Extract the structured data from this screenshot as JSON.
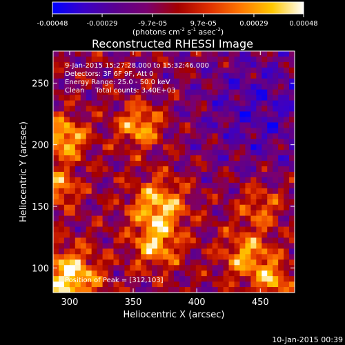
{
  "chart_data": {
    "type": "heatmap",
    "title": "Reconstructed RHESSI Image",
    "xlabel": "Heliocentric X (arcsec)",
    "ylabel": "Heliocentric Y (arcsec)",
    "xlim": [
      287,
      477
    ],
    "ylim": [
      80,
      276
    ],
    "x_ticks": [
      300,
      350,
      400,
      450
    ],
    "y_ticks": [
      100,
      150,
      200,
      250
    ],
    "colorbar": {
      "ticks": [
        "-0.00048",
        "-0.00029",
        "-9.7e-05",
        "9.7e-05",
        "0.00029",
        "0.00048"
      ],
      "unit_prefix": "(photons cm",
      "unit_exp1": "-2",
      "unit_mid": " s",
      "unit_exp2": "-1",
      "unit_mid2": " asec",
      "unit_exp3": "-2",
      "unit_suffix": ")",
      "range": [
        -0.00048,
        0.00048
      ],
      "colors": [
        "#0000ff",
        "#3a00c8",
        "#5a0090",
        "#7a0070",
        "#a40000",
        "#e03000",
        "#ff7800",
        "#ffc800",
        "#ffffff"
      ]
    },
    "annotations": [
      "9-Jan-2015 15:27:28.000 to 15:32:46.000",
      "Detectors: 3F 6F 9F, Att 0",
      "Energy Range: 25.0 - 50.0 keV",
      "Clean     Total counts: 3.40E+03"
    ],
    "peak_label": "Position of Peak = [312,103]",
    "peak": [
      312,
      103
    ],
    "sources": [
      {
        "x": 300,
        "y": 92,
        "amp": 1.0,
        "sigma": 16
      },
      {
        "x": 296,
        "y": 205,
        "amp": 0.85,
        "sigma": 12
      },
      {
        "x": 292,
        "y": 165,
        "amp": 0.7,
        "sigma": 10
      },
      {
        "x": 355,
        "y": 215,
        "amp": 0.75,
        "sigma": 12
      },
      {
        "x": 370,
        "y": 150,
        "amp": 0.85,
        "sigma": 15
      },
      {
        "x": 368,
        "y": 118,
        "amp": 0.7,
        "sigma": 13
      },
      {
        "x": 440,
        "y": 110,
        "amp": 0.7,
        "sigma": 14
      },
      {
        "x": 460,
        "y": 90,
        "amp": 0.65,
        "sigma": 10
      },
      {
        "x": 450,
        "y": 150,
        "amp": 0.5,
        "sigma": 12
      }
    ]
  },
  "footer": {
    "timestamp": "10-Jan-2015 00:39"
  }
}
